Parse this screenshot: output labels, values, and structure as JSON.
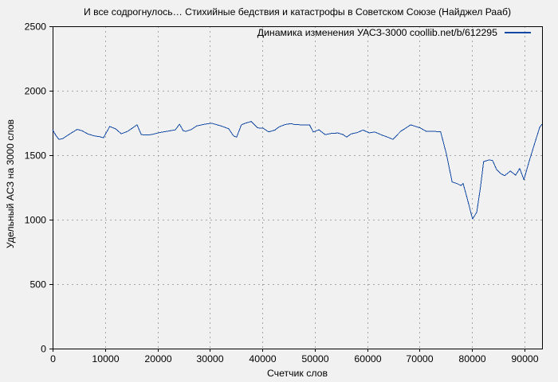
{
  "chart_data": {
    "type": "line",
    "title": "И все содрогнулось… Стихийные бедствия и катастрофы в Советском Союзе (Найджел Рааб)",
    "legend": "Динамика изменения УАСЗ-3000 coollib.net/b/612295",
    "xlabel": "Счетчик слов",
    "ylabel": "Удельный АСЗ на 3000 слов",
    "xlim": [
      0,
      93350
    ],
    "ylim": [
      0,
      2500
    ],
    "xticks": [
      0,
      10000,
      20000,
      30000,
      40000,
      50000,
      60000,
      70000,
      80000,
      90000
    ],
    "yticks": [
      0,
      500,
      1000,
      1500,
      2000,
      2500
    ],
    "grid": true,
    "legend_position": "top-right",
    "series": [
      {
        "name": "Динамика изменения УАСЗ-3000 coollib.net/b/612295",
        "x": [
          0,
          600,
          1200,
          1900,
          2900,
          4100,
          4700,
          5600,
          6700,
          7900,
          9000,
          9700,
          10900,
          12000,
          13100,
          14300,
          15200,
          16100,
          16900,
          17900,
          18900,
          20400,
          21900,
          23400,
          24200,
          24900,
          25400,
          26500,
          27500,
          29000,
          30300,
          32100,
          33600,
          34500,
          35100,
          36000,
          36800,
          37900,
          39100,
          40100,
          41200,
          42400,
          43200,
          44400,
          45500,
          46200,
          47800,
          49000,
          49700,
          50800,
          52000,
          53000,
          54400,
          55400,
          56100,
          56900,
          58100,
          59200,
          60400,
          61400,
          62900,
          64000,
          64900,
          66400,
          68300,
          70100,
          71300,
          72800,
          74000,
          75100,
          76200,
          77100,
          77900,
          78300,
          79100,
          80100,
          80900,
          81600,
          82200,
          83200,
          83900,
          84700,
          85500,
          86200,
          87300,
          88300,
          89100,
          89900,
          90800,
          91800,
          92900,
          93350
        ],
        "y": [
          1698,
          1655,
          1622,
          1628,
          1655,
          1686,
          1700,
          1690,
          1665,
          1650,
          1643,
          1635,
          1723,
          1705,
          1666,
          1685,
          1710,
          1736,
          1660,
          1656,
          1660,
          1675,
          1686,
          1696,
          1740,
          1690,
          1685,
          1700,
          1727,
          1740,
          1748,
          1727,
          1705,
          1650,
          1640,
          1736,
          1748,
          1762,
          1712,
          1710,
          1680,
          1695,
          1720,
          1738,
          1745,
          1737,
          1735,
          1735,
          1680,
          1697,
          1659,
          1668,
          1672,
          1660,
          1640,
          1665,
          1675,
          1695,
          1673,
          1680,
          1655,
          1638,
          1623,
          1685,
          1735,
          1712,
          1684,
          1684,
          1683,
          1510,
          1292,
          1280,
          1265,
          1280,
          1160,
          1005,
          1058,
          1250,
          1450,
          1463,
          1460,
          1387,
          1357,
          1341,
          1377,
          1345,
          1397,
          1310,
          1440,
          1573,
          1716,
          1740
        ]
      }
    ],
    "colors": {
      "line": "#1148a4",
      "background": "#f1f1f1",
      "grid": "#a6a6a6",
      "axis": "#000000",
      "text": "#000000"
    }
  }
}
